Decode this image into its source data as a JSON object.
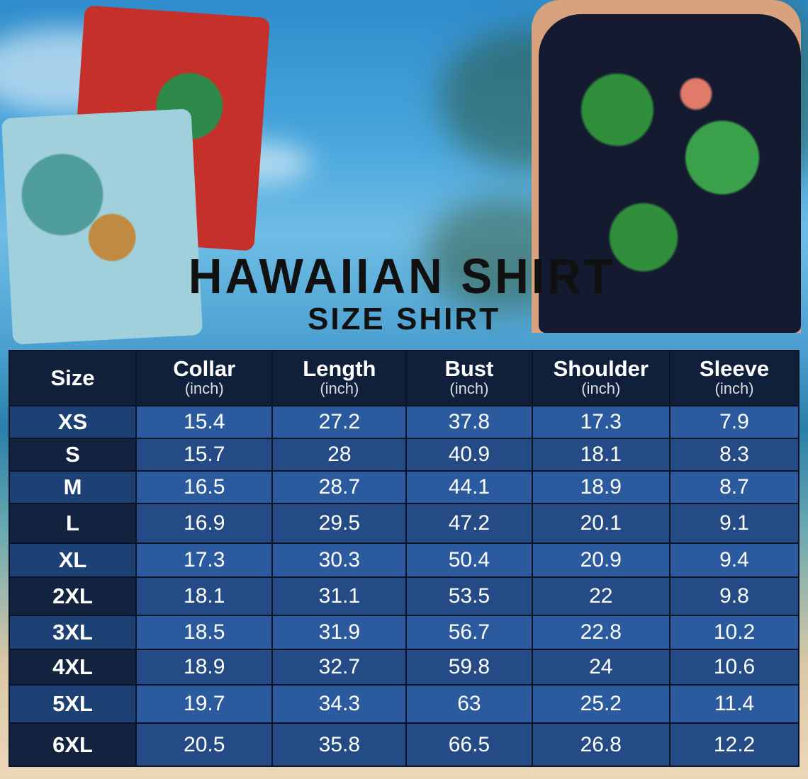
{
  "title": "HAWAIIAN SHIRT",
  "subtitle": "SIZE SHIRT",
  "table": {
    "headers": [
      {
        "label": "Size",
        "unit": ""
      },
      {
        "label": "Collar",
        "unit": "(inch)"
      },
      {
        "label": "Length",
        "unit": "(inch)"
      },
      {
        "label": "Bust",
        "unit": "(inch)"
      },
      {
        "label": "Shoulder",
        "unit": "(inch)"
      },
      {
        "label": "Sleeve",
        "unit": "(inch)"
      }
    ],
    "rows": [
      [
        "XS",
        "15.4",
        "27.2",
        "37.8",
        "17.3",
        "7.9"
      ],
      [
        "S",
        "15.7",
        "28",
        "40.9",
        "18.1",
        "8.3"
      ],
      [
        "M",
        "16.5",
        "28.7",
        "44.1",
        "18.9",
        "8.7"
      ],
      [
        "L",
        "16.9",
        "29.5",
        "47.2",
        "20.1",
        "9.1"
      ],
      [
        "XL",
        "17.3",
        "30.3",
        "50.4",
        "20.9",
        "9.4"
      ],
      [
        "2XL",
        "18.1",
        "31.1",
        "53.5",
        "22",
        "9.8"
      ],
      [
        "3XL",
        "18.5",
        "31.9",
        "56.7",
        "22.8",
        "10.2"
      ],
      [
        "4XL",
        "18.9",
        "32.7",
        "59.8",
        "24",
        "10.6"
      ],
      [
        "5XL",
        "19.7",
        "34.3",
        "63",
        "25.2",
        "11.4"
      ],
      [
        "6XL",
        "20.5",
        "35.8",
        "66.5",
        "26.8",
        "12.2"
      ]
    ]
  },
  "colors": {
    "header_bg": "#101f3a",
    "row_light": "#2b5b9e",
    "row_dark": "#244b86",
    "text": "#ffffff"
  }
}
